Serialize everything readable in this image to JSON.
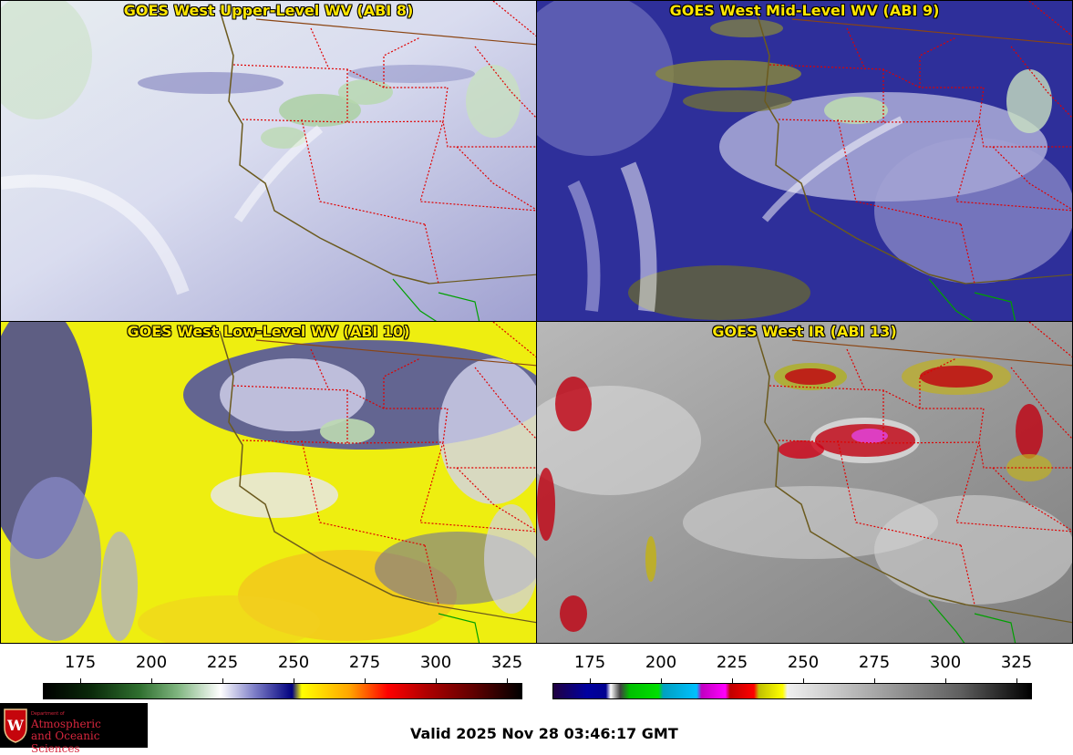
{
  "panels": [
    {
      "title": "GOES West Upper-Level WV (ABI 8)",
      "icon": "water-vapor-upper-map"
    },
    {
      "title": "GOES West Mid-Level WV (ABI 9)",
      "icon": "water-vapor-mid-map"
    },
    {
      "title": "GOES West Low-Level WV (ABI 10)",
      "icon": "water-vapor-low-map"
    },
    {
      "title": "GOES West IR (ABI 13)",
      "icon": "infrared-map"
    }
  ],
  "scales": [
    {
      "name": "wv",
      "ticks": [
        "175",
        "200",
        "225",
        "250",
        "275",
        "300",
        "325"
      ]
    },
    {
      "name": "ir",
      "ticks": [
        "175",
        "200",
        "225",
        "250",
        "275",
        "300",
        "325"
      ]
    }
  ],
  "logo": {
    "dept": "Department of",
    "line1": "Atmospheric",
    "line2": "and Oceanic Sciences",
    "crest_letter": "W"
  },
  "footer": {
    "valid": "Valid 2025 Nov 28 03:46:17 GMT"
  },
  "colors": {
    "title": "#ffe600",
    "state_lines": "#e00000",
    "coast": "#6b5a1e",
    "mexico": "#00a000"
  }
}
